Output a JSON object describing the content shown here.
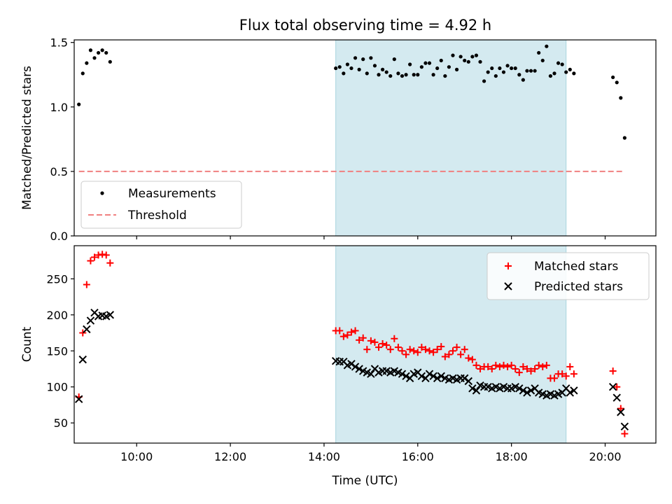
{
  "figure_title": "Flux total observing time = 4.92 h",
  "chart_data": [
    {
      "type": "scatter",
      "ylabel": "Matched/Predicted stars",
      "xlabel": "",
      "xlim": [
        "08:40",
        "21:05"
      ],
      "ylim": [
        0,
        1.52
      ],
      "yticks": [
        {
          "v": 0,
          "label": "0.0"
        },
        {
          "v": 0.5,
          "label": "0.5"
        },
        {
          "v": 1.0,
          "label": "1.0"
        },
        {
          "v": 1.5,
          "label": "1.5"
        }
      ],
      "xticks": [
        "10:00",
        "12:00",
        "14:00",
        "16:00",
        "18:00",
        "20:00"
      ],
      "show_xtick_labels": false,
      "highlight_span": [
        "14:15",
        "19:10"
      ],
      "legend": {
        "position": "lower-left",
        "entries": [
          "Measurements",
          "Threshold"
        ]
      },
      "series": [
        {
          "name": "Measurements",
          "marker": "dot",
          "color": "#000000",
          "points": [
            [
              "08:46",
              1.02
            ],
            [
              "08:51",
              1.26
            ],
            [
              "08:56",
              1.34
            ],
            [
              "09:01",
              1.44
            ],
            [
              "09:06",
              1.38
            ],
            [
              "09:11",
              1.42
            ],
            [
              "09:16",
              1.44
            ],
            [
              "09:21",
              1.42
            ],
            [
              "09:26",
              1.35
            ],
            [
              "14:15",
              1.3
            ],
            [
              "14:20",
              1.31
            ],
            [
              "14:25",
              1.26
            ],
            [
              "14:30",
              1.33
            ],
            [
              "14:35",
              1.3
            ],
            [
              "14:40",
              1.38
            ],
            [
              "14:45",
              1.29
            ],
            [
              "14:50",
              1.37
            ],
            [
              "14:55",
              1.26
            ],
            [
              "15:00",
              1.38
            ],
            [
              "15:05",
              1.32
            ],
            [
              "15:10",
              1.25
            ],
            [
              "15:15",
              1.29
            ],
            [
              "15:20",
              1.27
            ],
            [
              "15:25",
              1.24
            ],
            [
              "15:30",
              1.37
            ],
            [
              "15:35",
              1.26
            ],
            [
              "15:40",
              1.24
            ],
            [
              "15:45",
              1.25
            ],
            [
              "15:50",
              1.33
            ],
            [
              "15:55",
              1.25
            ],
            [
              "16:00",
              1.25
            ],
            [
              "16:05",
              1.31
            ],
            [
              "16:10",
              1.34
            ],
            [
              "16:15",
              1.34
            ],
            [
              "16:20",
              1.25
            ],
            [
              "16:25",
              1.3
            ],
            [
              "16:30",
              1.36
            ],
            [
              "16:35",
              1.24
            ],
            [
              "16:40",
              1.31
            ],
            [
              "16:45",
              1.4
            ],
            [
              "16:50",
              1.29
            ],
            [
              "16:55",
              1.39
            ],
            [
              "17:00",
              1.36
            ],
            [
              "17:05",
              1.35
            ],
            [
              "17:10",
              1.39
            ],
            [
              "17:15",
              1.4
            ],
            [
              "17:20",
              1.35
            ],
            [
              "17:25",
              1.2
            ],
            [
              "17:30",
              1.27
            ],
            [
              "17:35",
              1.3
            ],
            [
              "17:40",
              1.24
            ],
            [
              "17:45",
              1.3
            ],
            [
              "17:50",
              1.27
            ],
            [
              "17:55",
              1.32
            ],
            [
              "18:00",
              1.3
            ],
            [
              "18:05",
              1.3
            ],
            [
              "18:10",
              1.25
            ],
            [
              "18:15",
              1.21
            ],
            [
              "18:20",
              1.28
            ],
            [
              "18:25",
              1.28
            ],
            [
              "18:30",
              1.28
            ],
            [
              "18:35",
              1.42
            ],
            [
              "18:40",
              1.36
            ],
            [
              "18:45",
              1.47
            ],
            [
              "18:50",
              1.24
            ],
            [
              "18:55",
              1.26
            ],
            [
              "19:00",
              1.34
            ],
            [
              "19:05",
              1.33
            ],
            [
              "19:10",
              1.27
            ],
            [
              "19:15",
              1.29
            ],
            [
              "19:20",
              1.26
            ],
            [
              "20:10",
              1.23
            ],
            [
              "20:15",
              1.19
            ],
            [
              "20:20",
              1.07
            ],
            [
              "20:25",
              0.76
            ]
          ]
        },
        {
          "name": "Threshold",
          "marker": "dashed-line",
          "color": "#f08080",
          "points": [
            [
              "08:46",
              0.5
            ],
            [
              "20:25",
              0.5
            ]
          ]
        }
      ]
    },
    {
      "type": "scatter",
      "ylabel": "Count",
      "xlabel": "Time (UTC)",
      "xlim": [
        "08:40",
        "21:05"
      ],
      "ylim": [
        22,
        296
      ],
      "yticks": [
        {
          "v": 50,
          "label": "50"
        },
        {
          "v": 100,
          "label": "100"
        },
        {
          "v": 150,
          "label": "150"
        },
        {
          "v": 200,
          "label": "200"
        },
        {
          "v": 250,
          "label": "250"
        }
      ],
      "xticks": [
        "10:00",
        "12:00",
        "14:00",
        "16:00",
        "18:00",
        "20:00"
      ],
      "show_xtick_labels": true,
      "highlight_span": [
        "14:15",
        "19:10"
      ],
      "legend": {
        "position": "upper-right",
        "entries": [
          "Matched stars",
          "Predicted stars"
        ]
      },
      "series": [
        {
          "name": "Matched stars",
          "marker": "plus",
          "color": "#ff0000",
          "points": [
            [
              "08:46",
              86
            ],
            [
              "08:51",
              175
            ],
            [
              "08:56",
              242
            ],
            [
              "09:01",
              275
            ],
            [
              "09:06",
              280
            ],
            [
              "09:11",
              283
            ],
            [
              "09:16",
              284
            ],
            [
              "09:21",
              283
            ],
            [
              "09:26",
              272
            ],
            [
              "14:15",
              178
            ],
            [
              "14:20",
              178
            ],
            [
              "14:25",
              170
            ],
            [
              "14:30",
              172
            ],
            [
              "14:35",
              176
            ],
            [
              "14:40",
              178
            ],
            [
              "14:45",
              165
            ],
            [
              "14:50",
              168
            ],
            [
              "14:55",
              152
            ],
            [
              "15:00",
              164
            ],
            [
              "15:05",
              162
            ],
            [
              "15:10",
              155
            ],
            [
              "15:15",
              160
            ],
            [
              "15:20",
              158
            ],
            [
              "15:25",
              152
            ],
            [
              "15:30",
              167
            ],
            [
              "15:35",
              155
            ],
            [
              "15:40",
              150
            ],
            [
              "15:45",
              145
            ],
            [
              "15:50",
              152
            ],
            [
              "15:55",
              150
            ],
            [
              "16:00",
              148
            ],
            [
              "16:05",
              155
            ],
            [
              "16:10",
              152
            ],
            [
              "16:15",
              150
            ],
            [
              "16:20",
              148
            ],
            [
              "16:25",
              152
            ],
            [
              "16:30",
              156
            ],
            [
              "16:35",
              142
            ],
            [
              "16:40",
              145
            ],
            [
              "16:45",
              150
            ],
            [
              "16:50",
              155
            ],
            [
              "16:55",
              145
            ],
            [
              "17:00",
              152
            ],
            [
              "17:05",
              140
            ],
            [
              "17:10",
              138
            ],
            [
              "17:15",
              130
            ],
            [
              "17:20",
              125
            ],
            [
              "17:25",
              128
            ],
            [
              "17:30",
              128
            ],
            [
              "17:35",
              125
            ],
            [
              "17:40",
              130
            ],
            [
              "17:45",
              128
            ],
            [
              "17:50",
              130
            ],
            [
              "17:55",
              128
            ],
            [
              "18:00",
              130
            ],
            [
              "18:05",
              125
            ],
            [
              "18:10",
              120
            ],
            [
              "18:15",
              128
            ],
            [
              "18:20",
              125
            ],
            [
              "18:25",
              122
            ],
            [
              "18:30",
              125
            ],
            [
              "18:35",
              130
            ],
            [
              "18:40",
              128
            ],
            [
              "18:45",
              130
            ],
            [
              "18:50",
              112
            ],
            [
              "18:55",
              112
            ],
            [
              "19:00",
              118
            ],
            [
              "19:05",
              118
            ],
            [
              "19:10",
              115
            ],
            [
              "19:15",
              128
            ],
            [
              "19:20",
              118
            ],
            [
              "20:10",
              122
            ],
            [
              "20:15",
              100
            ],
            [
              "20:20",
              70
            ],
            [
              "20:25",
              35
            ]
          ]
        },
        {
          "name": "Predicted stars",
          "marker": "x",
          "color": "#000000",
          "points": [
            [
              "08:46",
              83
            ],
            [
              "08:51",
              138
            ],
            [
              "08:56",
              180
            ],
            [
              "09:01",
              192
            ],
            [
              "09:06",
              203
            ],
            [
              "09:11",
              198
            ],
            [
              "09:16",
              199
            ],
            [
              "09:21",
              198
            ],
            [
              "09:26",
              200
            ],
            [
              "14:15",
              136
            ],
            [
              "14:20",
              135
            ],
            [
              "14:25",
              135
            ],
            [
              "14:30",
              130
            ],
            [
              "14:35",
              132
            ],
            [
              "14:40",
              128
            ],
            [
              "14:45",
              125
            ],
            [
              "14:50",
              122
            ],
            [
              "14:55",
              120
            ],
            [
              "15:00",
              118
            ],
            [
              "15:05",
              125
            ],
            [
              "15:10",
              120
            ],
            [
              "15:15",
              122
            ],
            [
              "15:20",
              122
            ],
            [
              "15:25",
              120
            ],
            [
              "15:30",
              122
            ],
            [
              "15:35",
              120
            ],
            [
              "15:40",
              118
            ],
            [
              "15:45",
              115
            ],
            [
              "15:50",
              112
            ],
            [
              "15:55",
              118
            ],
            [
              "16:00",
              120
            ],
            [
              "16:05",
              115
            ],
            [
              "16:10",
              112
            ],
            [
              "16:15",
              118
            ],
            [
              "16:20",
              115
            ],
            [
              "16:25",
              112
            ],
            [
              "16:30",
              115
            ],
            [
              "16:35",
              112
            ],
            [
              "16:40",
              110
            ],
            [
              "16:45",
              112
            ],
            [
              "16:50",
              110
            ],
            [
              "16:55",
              112
            ],
            [
              "17:00",
              112
            ],
            [
              "17:05",
              108
            ],
            [
              "17:10",
              98
            ],
            [
              "17:15",
              95
            ],
            [
              "17:20",
              102
            ],
            [
              "17:25",
              100
            ],
            [
              "17:30",
              100
            ],
            [
              "17:35",
              98
            ],
            [
              "17:40",
              100
            ],
            [
              "17:45",
              98
            ],
            [
              "17:50",
              100
            ],
            [
              "17:55",
              98
            ],
            [
              "18:00",
              98
            ],
            [
              "18:05",
              100
            ],
            [
              "18:10",
              98
            ],
            [
              "18:15",
              95
            ],
            [
              "18:20",
              92
            ],
            [
              "18:25",
              95
            ],
            [
              "18:30",
              98
            ],
            [
              "18:35",
              92
            ],
            [
              "18:40",
              90
            ],
            [
              "18:45",
              88
            ],
            [
              "18:50",
              90
            ],
            [
              "18:55",
              88
            ],
            [
              "19:00",
              90
            ],
            [
              "19:05",
              92
            ],
            [
              "19:10",
              98
            ],
            [
              "19:15",
              92
            ],
            [
              "19:20",
              95
            ],
            [
              "20:10",
              100
            ],
            [
              "20:15",
              85
            ],
            [
              "20:20",
              65
            ],
            [
              "20:25",
              45
            ]
          ]
        }
      ]
    }
  ]
}
